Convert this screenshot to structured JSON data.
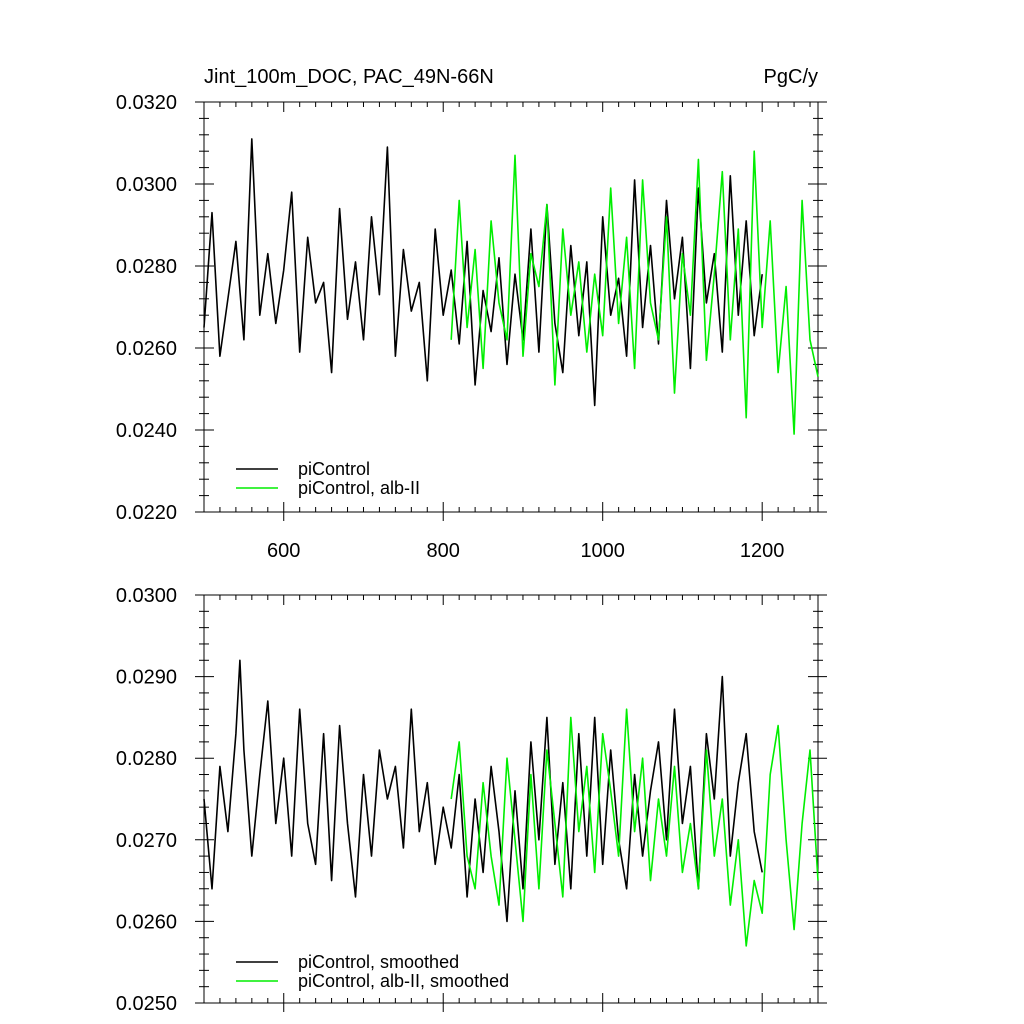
{
  "chart_data": [
    {
      "type": "line",
      "title": "Jint_100m_DOC, PAC_49N-66N",
      "units": "PgC/y",
      "xlim": [
        500,
        1270
      ],
      "ylim": [
        0.022,
        0.032
      ],
      "xticks": [
        600,
        800,
        1000,
        1200
      ],
      "xtick_labels": [
        "600",
        "800",
        "1000",
        "1200"
      ],
      "yticks": [
        0.022,
        0.024,
        0.026,
        0.028,
        0.03,
        0.032
      ],
      "ytick_labels": [
        "0.0220",
        "0.0240",
        "0.0260",
        "0.0280",
        "0.0300",
        "0.0320"
      ],
      "legend_position": "bottom-left",
      "series": [
        {
          "name": "piControl",
          "color": "#000000",
          "x": [
            500,
            510,
            520,
            530,
            540,
            550,
            560,
            570,
            580,
            590,
            600,
            610,
            620,
            630,
            640,
            650,
            660,
            670,
            680,
            690,
            700,
            710,
            720,
            730,
            740,
            750,
            760,
            770,
            780,
            790,
            800,
            810,
            820,
            830,
            840,
            850,
            860,
            870,
            880,
            890,
            900,
            910,
            920,
            930,
            940,
            950,
            960,
            970,
            980,
            990,
            1000,
            1010,
            1020,
            1030,
            1040,
            1050,
            1060,
            1070,
            1080,
            1090,
            1100,
            1110,
            1120,
            1130,
            1140,
            1150,
            1160,
            1170,
            1180,
            1190,
            1200
          ],
          "y": [
            0.0265,
            0.0293,
            0.0258,
            0.0272,
            0.0286,
            0.0262,
            0.0311,
            0.0268,
            0.0283,
            0.0266,
            0.0279,
            0.0298,
            0.0259,
            0.0287,
            0.0271,
            0.0276,
            0.0254,
            0.0294,
            0.0267,
            0.0281,
            0.0262,
            0.0292,
            0.0273,
            0.0309,
            0.0258,
            0.0284,
            0.0269,
            0.0276,
            0.0252,
            0.0289,
            0.0268,
            0.0279,
            0.0261,
            0.0286,
            0.0251,
            0.0274,
            0.0264,
            0.0282,
            0.0256,
            0.0278,
            0.0262,
            0.0289,
            0.0259,
            0.0295,
            0.0266,
            0.0254,
            0.0285,
            0.0263,
            0.0281,
            0.0246,
            0.0292,
            0.0268,
            0.0277,
            0.0258,
            0.0301,
            0.0265,
            0.0285,
            0.0261,
            0.0296,
            0.0272,
            0.0287,
            0.0255,
            0.0299,
            0.0271,
            0.0283,
            0.0259,
            0.0302,
            0.0268,
            0.0291,
            0.0263,
            0.0278
          ]
        },
        {
          "name": "piControl, alb-II",
          "color": "#00ee00",
          "x": [
            810,
            820,
            830,
            840,
            850,
            860,
            870,
            880,
            890,
            900,
            910,
            920,
            930,
            940,
            950,
            960,
            970,
            980,
            990,
            1000,
            1010,
            1020,
            1030,
            1040,
            1050,
            1060,
            1070,
            1080,
            1090,
            1100,
            1110,
            1120,
            1130,
            1140,
            1150,
            1160,
            1170,
            1180,
            1190,
            1200,
            1210,
            1220,
            1230,
            1240,
            1250,
            1260,
            1270
          ],
          "y": [
            0.0262,
            0.0296,
            0.0265,
            0.0284,
            0.0255,
            0.0291,
            0.0271,
            0.0262,
            0.0307,
            0.0258,
            0.0283,
            0.0275,
            0.0295,
            0.0251,
            0.0289,
            0.0268,
            0.0281,
            0.0259,
            0.0278,
            0.0263,
            0.0299,
            0.0266,
            0.0287,
            0.0255,
            0.0301,
            0.0271,
            0.0262,
            0.0292,
            0.0249,
            0.0283,
            0.0268,
            0.0306,
            0.0257,
            0.0278,
            0.0303,
            0.0262,
            0.0289,
            0.0243,
            0.0308,
            0.0265,
            0.0291,
            0.0254,
            0.0275,
            0.0239,
            0.0296,
            0.0262,
            0.0253
          ]
        }
      ]
    },
    {
      "type": "line",
      "title": "",
      "xlim": [
        500,
        1270
      ],
      "ylim": [
        0.025,
        0.03
      ],
      "xticks": [
        600,
        800,
        1000,
        1200
      ],
      "yticks": [
        0.025,
        0.026,
        0.027,
        0.028,
        0.029,
        0.03
      ],
      "ytick_labels": [
        "0.0250",
        "0.0260",
        "0.0270",
        "0.0280",
        "0.0290",
        "0.0300"
      ],
      "legend_position": "bottom-left",
      "series": [
        {
          "name": "piControl, smoothed",
          "color": "#000000",
          "x": [
            500,
            510,
            520,
            530,
            540,
            545,
            550,
            560,
            570,
            580,
            590,
            600,
            610,
            620,
            630,
            640,
            650,
            660,
            670,
            680,
            690,
            700,
            710,
            720,
            730,
            740,
            750,
            760,
            770,
            780,
            790,
            800,
            810,
            820,
            830,
            840,
            850,
            860,
            870,
            880,
            890,
            900,
            910,
            920,
            930,
            940,
            950,
            960,
            970,
            980,
            990,
            1000,
            1010,
            1020,
            1030,
            1040,
            1050,
            1060,
            1070,
            1080,
            1090,
            1100,
            1110,
            1120,
            1130,
            1140,
            1150,
            1160,
            1170,
            1180,
            1190,
            1200
          ],
          "y": [
            0.0275,
            0.0264,
            0.0279,
            0.0271,
            0.0283,
            0.0292,
            0.0281,
            0.0268,
            0.0278,
            0.0287,
            0.0272,
            0.028,
            0.0268,
            0.0286,
            0.0272,
            0.0267,
            0.0283,
            0.0265,
            0.0284,
            0.0272,
            0.0263,
            0.0278,
            0.0268,
            0.0281,
            0.0275,
            0.0279,
            0.0269,
            0.0286,
            0.0271,
            0.0277,
            0.0267,
            0.0274,
            0.0269,
            0.0278,
            0.0263,
            0.0275,
            0.0266,
            0.0279,
            0.0271,
            0.026,
            0.0276,
            0.0264,
            0.0282,
            0.027,
            0.0285,
            0.0267,
            0.0277,
            0.0264,
            0.0283,
            0.0268,
            0.0285,
            0.0267,
            0.0281,
            0.027,
            0.0264,
            0.0278,
            0.0268,
            0.0276,
            0.0282,
            0.027,
            0.0286,
            0.0272,
            0.0279,
            0.0264,
            0.0283,
            0.0275,
            0.029,
            0.0268,
            0.0277,
            0.0283,
            0.0271,
            0.0266
          ]
        },
        {
          "name": "piControl, alb-II, smoothed",
          "color": "#00ee00",
          "x": [
            810,
            820,
            830,
            840,
            850,
            860,
            870,
            880,
            890,
            900,
            910,
            920,
            930,
            940,
            950,
            960,
            970,
            980,
            990,
            1000,
            1010,
            1020,
            1030,
            1040,
            1050,
            1060,
            1070,
            1080,
            1090,
            1100,
            1110,
            1120,
            1130,
            1140,
            1150,
            1160,
            1170,
            1180,
            1190,
            1200,
            1210,
            1220,
            1230,
            1240,
            1250,
            1260,
            1270
          ],
          "y": [
            0.0275,
            0.0282,
            0.0268,
            0.0264,
            0.0277,
            0.0268,
            0.0262,
            0.028,
            0.027,
            0.026,
            0.0278,
            0.0264,
            0.0281,
            0.0272,
            0.0263,
            0.0285,
            0.0271,
            0.0279,
            0.0266,
            0.0283,
            0.0276,
            0.0268,
            0.0286,
            0.0271,
            0.028,
            0.0265,
            0.0275,
            0.0268,
            0.0279,
            0.0266,
            0.0272,
            0.0264,
            0.0281,
            0.0268,
            0.0275,
            0.0262,
            0.027,
            0.0257,
            0.0265,
            0.0261,
            0.0278,
            0.0284,
            0.027,
            0.0259,
            0.0272,
            0.0281,
            0.0265
          ]
        }
      ]
    }
  ]
}
